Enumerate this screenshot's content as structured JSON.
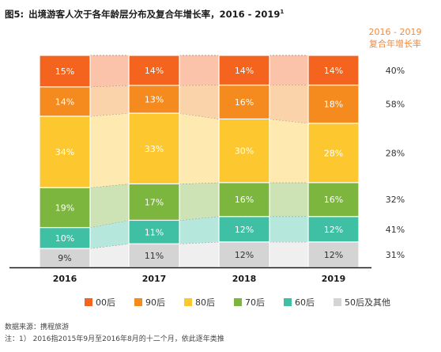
{
  "title_prefix": "图5:",
  "title_main": "出境游客人次于各年龄层分布及复合年增长率，2016 - 2019",
  "title_sup": "1",
  "chart_data": {
    "type": "bar",
    "stacked": true,
    "normalized_percent": true,
    "categories": [
      "2016",
      "2017",
      "2018",
      "2019"
    ],
    "series": [
      {
        "name": "50后及其他",
        "color": "#d4d4d4",
        "values": [
          9,
          11,
          12,
          12
        ]
      },
      {
        "name": "60后",
        "color": "#3fbfa4",
        "values": [
          10,
          11,
          12,
          12
        ]
      },
      {
        "name": "70后",
        "color": "#7cb63f",
        "values": [
          19,
          17,
          16,
          16
        ]
      },
      {
        "name": "80后",
        "color": "#fdc82f",
        "values": [
          34,
          33,
          30,
          28
        ]
      },
      {
        "name": "90后",
        "color": "#f58a1f",
        "values": [
          14,
          13,
          16,
          18
        ]
      },
      {
        "name": "00后",
        "color": "#f4641e",
        "values": [
          15,
          14,
          14,
          14
        ]
      }
    ],
    "cagr": {
      "header_line1": "2016 - 2019",
      "header_line2": "复合年增长率",
      "values": [
        "40%",
        "58%",
        "28%",
        "32%",
        "41%",
        "31%"
      ]
    },
    "legend_order": [
      "00后",
      "90后",
      "80后",
      "70后",
      "60后",
      "50后及其他"
    ],
    "legend_position": "bottom"
  },
  "source": "数据来源：携程旅游",
  "note": "注：1） 2016指2015年9月至2016年8月的十二个月，依此逐年类推"
}
